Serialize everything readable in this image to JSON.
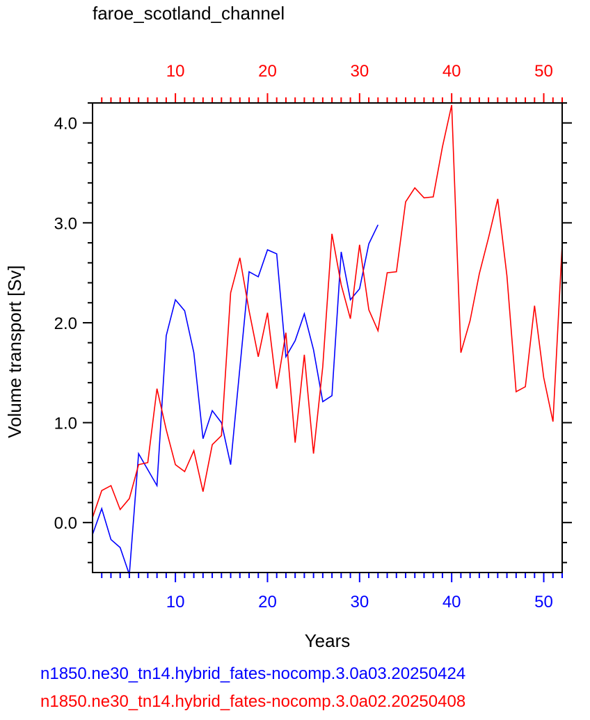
{
  "chart_data": {
    "type": "line",
    "title": "faroe_scotland_channel",
    "xlabel": "Years",
    "ylabel": "Volume transport [Sv]",
    "ylim": [
      -0.5,
      4.2
    ],
    "xlim": [
      1,
      52
    ],
    "yticks": [
      "0.0",
      "1.0",
      "2.0",
      "3.0",
      "4.0"
    ],
    "xticks_bottom": [
      "10",
      "20",
      "30",
      "40",
      "50"
    ],
    "xticks_top": [
      "10",
      "20",
      "30",
      "40",
      "50"
    ],
    "grid": false,
    "series": [
      {
        "name": "n1850.ne30_tn14.hybrid_fates-nocomp.3.0a03.20250424",
        "color": "#0000ff",
        "axis": "bottom",
        "x": [
          1,
          2,
          3,
          4,
          5,
          6,
          7,
          8,
          9,
          10,
          11,
          12,
          13,
          14,
          15,
          16,
          17,
          18,
          19,
          20,
          21,
          22,
          23,
          24,
          25,
          26,
          27,
          28,
          29,
          30,
          31,
          32
        ],
        "y": [
          -0.12,
          0.14,
          -0.17,
          -0.25,
          -0.52,
          0.69,
          0.53,
          0.37,
          1.87,
          2.23,
          2.12,
          1.7,
          0.84,
          1.12,
          1.0,
          0.58,
          1.55,
          2.51,
          2.46,
          2.73,
          2.69,
          1.66,
          1.82,
          2.09,
          1.73,
          1.21,
          1.27,
          2.71,
          2.23,
          2.34,
          2.79,
          2.98
        ]
      },
      {
        "name": "n1850.ne30_tn14.hybrid_fates-nocomp.3.0a02.20250408",
        "color": "#ff0000",
        "axis": "top",
        "x": [
          1,
          2,
          3,
          4,
          5,
          6,
          7,
          8,
          9,
          10,
          11,
          12,
          13,
          14,
          15,
          16,
          17,
          18,
          19,
          20,
          21,
          22,
          23,
          24,
          25,
          26,
          27,
          28,
          29,
          30,
          31,
          32,
          33,
          34,
          35,
          36,
          37,
          38,
          39,
          40,
          41,
          42,
          43,
          44,
          45,
          46,
          47,
          48,
          49,
          50,
          51,
          52
        ],
        "y": [
          0.05,
          0.32,
          0.37,
          0.13,
          0.24,
          0.58,
          0.6,
          1.34,
          0.93,
          0.58,
          0.51,
          0.72,
          0.31,
          0.78,
          0.87,
          2.3,
          2.65,
          2.12,
          1.66,
          2.1,
          1.34,
          1.9,
          0.8,
          1.68,
          0.69,
          1.56,
          2.89,
          2.38,
          2.04,
          2.78,
          2.13,
          1.92,
          2.5,
          2.51,
          3.21,
          3.35,
          3.25,
          3.26,
          3.76,
          4.18,
          1.7,
          2.02,
          2.49,
          2.85,
          3.24,
          2.47,
          1.31,
          1.36,
          2.17,
          1.45,
          1.01,
          2.78
        ]
      }
    ]
  }
}
